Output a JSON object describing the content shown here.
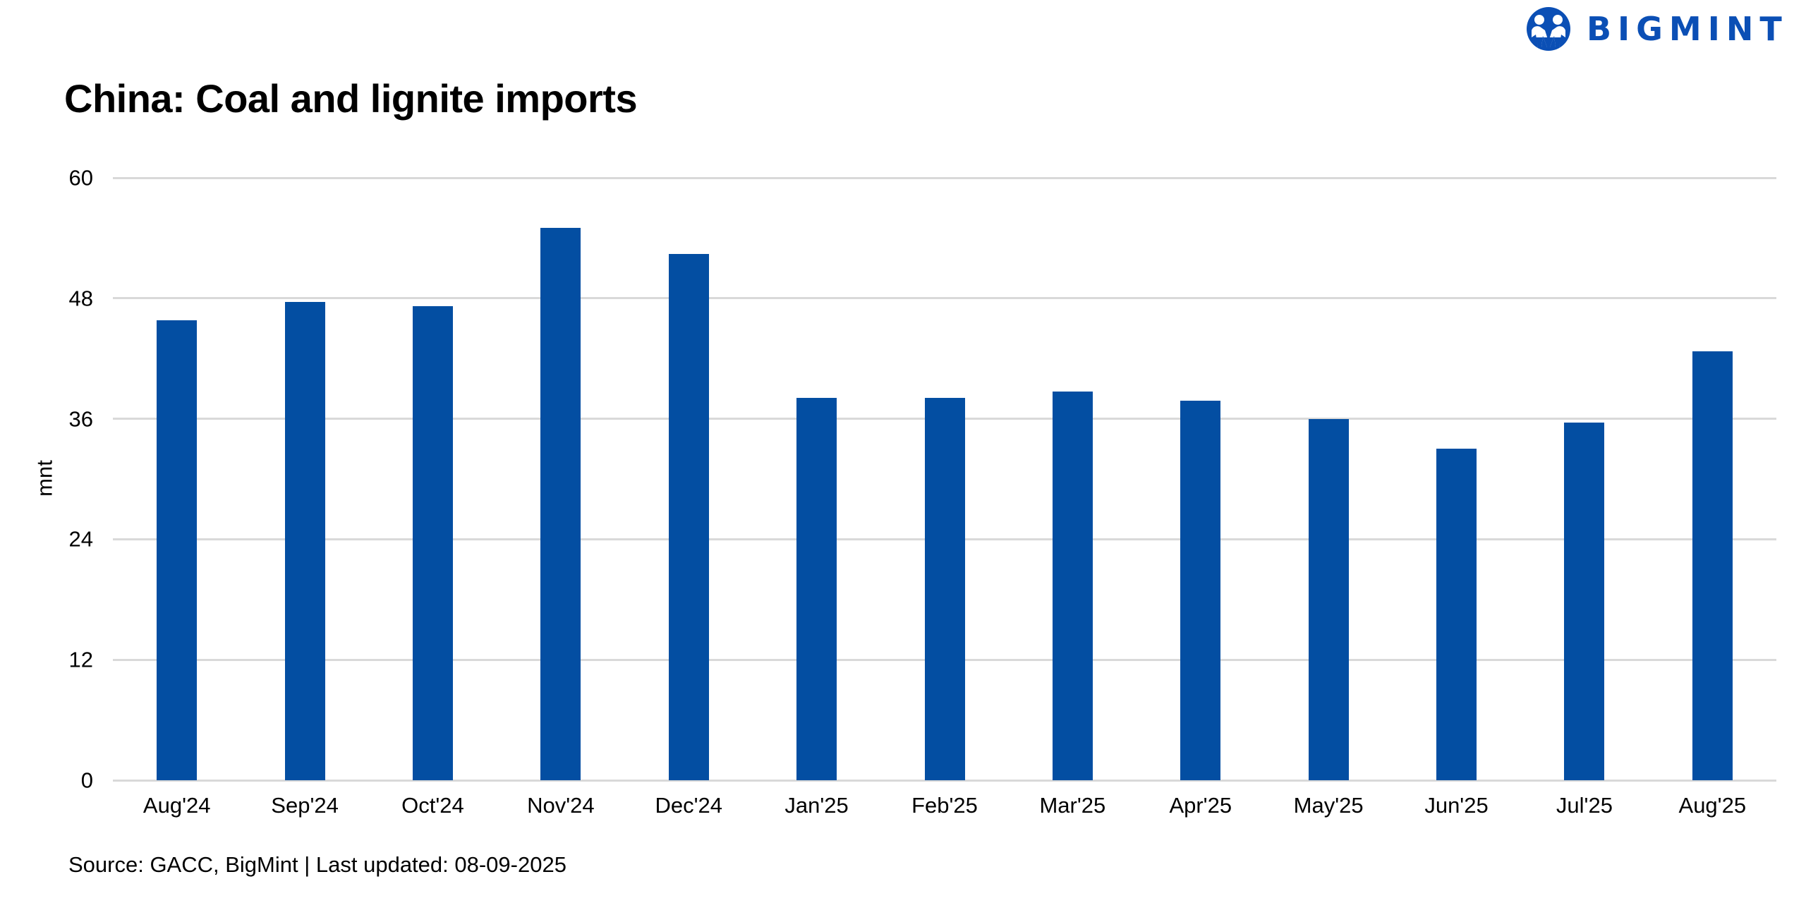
{
  "brand": {
    "name": "BIGMINT",
    "logo_icon": "bigmint-people-circle-icon",
    "color": "#0b4fb5"
  },
  "title": "China: Coal and lignite imports",
  "footer": "Source: GACC, BigMint | Last updated: 08-09-2025",
  "colors": {
    "bar": "#034ea2",
    "grid": "#d9d9d9",
    "text": "#000000"
  },
  "chart_data": {
    "type": "bar",
    "title": "China: Coal and lignite imports",
    "xlabel": "",
    "ylabel": "mnt",
    "ylim": [
      0,
      60
    ],
    "yticks": [
      0,
      12,
      24,
      36,
      48,
      60
    ],
    "grid": true,
    "legend": null,
    "categories": [
      "Aug'24",
      "Sep'24",
      "Oct'24",
      "Nov'24",
      "Dec'24",
      "Jan'25",
      "Feb'25",
      "Mar'25",
      "Apr'25",
      "May'25",
      "Jun'25",
      "Jul'25",
      "Aug'25"
    ],
    "values": [
      45.8,
      47.6,
      47.2,
      55.0,
      52.4,
      38.1,
      38.1,
      38.7,
      37.8,
      36.0,
      33.0,
      35.6,
      42.7
    ],
    "source": "Source: GACC, BigMint | Last updated: 08-09-2025"
  }
}
